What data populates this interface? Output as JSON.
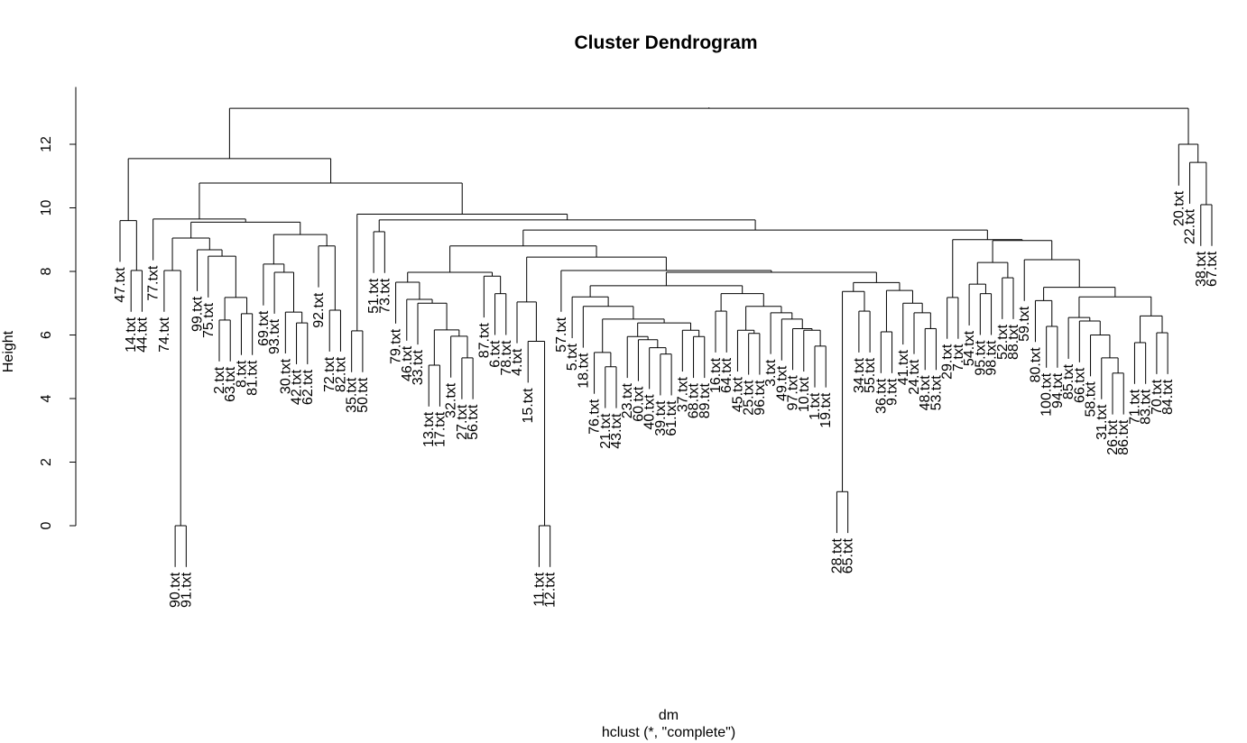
{
  "chart_data": {
    "type": "dendrogram",
    "title": "Cluster Dendrogram",
    "xlabel": "dm",
    "sublabel": "hclust (*, \"complete\")",
    "ylabel": "Height",
    "ylim": [
      0,
      13.5
    ],
    "yticks": [
      0,
      2,
      4,
      6,
      8,
      10,
      12
    ],
    "hang": 1.3,
    "leaf_suffix": ".txt",
    "tree": [
      13.13,
      [
        11.55,
        [
          9.6,
          "47",
          [
            8.03,
            "14",
            "44"
          ]
        ],
        [
          10.78,
          [
            9.65,
            "77",
            [
              9.55,
              [
                9.05,
                [
                  8.03,
                  "74",
                  [
                    0.0,
                    "90",
                    "91"
                  ]
                ],
                [
                  8.68,
                  "99",
                  [
                    8.48,
                    "75",
                    [
                      7.18,
                      [
                        6.47,
                        "2",
                        "63"
                      ],
                      [
                        6.67,
                        "8",
                        "81"
                      ]
                    ]
                  ]
                ]
              ],
              [
                9.16,
                [
                  8.23,
                  "69",
                  [
                    7.97,
                    "93",
                    [
                      6.72,
                      "30",
                      [
                        6.38,
                        "42",
                        "62"
                      ]
                    ]
                  ]
                ],
                [
                  8.8,
                  "92",
                  [
                    6.78,
                    "72",
                    "82"
                  ]
                ]
              ]
            ]
          ],
          [
            9.8,
            [
              6.13,
              "35",
              "50"
            ],
            [
              9.62,
              [
                9.25,
                "51",
                "73"
              ],
              [
                9.3,
                [
                  8.8,
                  [
                    7.97,
                    [
                      7.66,
                      "79",
                      [
                        7.12,
                        "46",
                        [
                          7.0,
                          "33",
                          [
                            6.16,
                            [
                              5.05,
                              "13",
                              "17"
                            ],
                            [
                              5.96,
                              "32",
                              [
                                5.28,
                                "27",
                                "56"
                              ]
                            ]
                          ]
                        ]
                      ]
                    ],
                    [
                      7.85,
                      "87",
                      [
                        7.3,
                        "6",
                        "78"
                      ]
                    ]
                  ],
                  [
                    8.45,
                    [
                      7.04,
                      "4",
                      [
                        5.8,
                        "15",
                        [
                          0.0,
                          "11",
                          "12"
                        ]
                      ]
                    ],
                    [
                      8.03,
                      "57",
                      [
                        7.97,
                        [
                          7.55,
                          [
                            7.2,
                            "5",
                            [
                              6.9,
                              "18",
                              [
                                6.5,
                                [
                                  5.45,
                                  "76",
                                  [
                                    5.0,
                                    "21",
                                    "43"
                                  ]
                                ],
                                [
                                  6.38,
                                  [
                                    5.95,
                                    "23",
                                    [
                                      5.85,
                                      "60",
                                      [
                                        5.6,
                                        "40",
                                        [
                                          5.4,
                                          "39",
                                          "61"
                                        ]
                                      ]
                                    ]
                                  ],
                                  [
                                    6.15,
                                    "37",
                                    [
                                      5.95,
                                      "68",
                                      "89"
                                    ]
                                  ]
                                ]
                              ]
                            ]
                          ],
                          [
                            7.3,
                            [
                              6.75,
                              "16",
                              "64"
                            ],
                            [
                              6.9,
                              [
                                6.15,
                                "45",
                                [
                                  6.05,
                                  "25",
                                  "96"
                                ]
                              ],
                              [
                                6.7,
                                "3",
                                [
                                  6.5,
                                  "49",
                                  [
                                    6.2,
                                    "97",
                                    [
                                      6.15,
                                      "10",
                                      [
                                        5.65,
                                        "1",
                                        "19"
                                      ]
                                    ]
                                  ]
                                ]
                              ]
                            ]
                          ]
                        ],
                        [
                          7.65,
                          [
                            7.37,
                            [
                              1.07,
                              "28",
                              "65"
                            ],
                            [
                              6.75,
                              "34",
                              "55"
                            ]
                          ],
                          [
                            7.4,
                            [
                              6.1,
                              "36",
                              "9"
                            ],
                            [
                              7.0,
                              "41",
                              [
                                6.7,
                                "24",
                                [
                                  6.2,
                                  "48",
                                  "53"
                                ]
                              ]
                            ]
                          ]
                        ]
                      ]
                    ]
                  ]
                ],
                [
                  9.0,
                  [
                    7.18,
                    "29",
                    "7"
                  ],
                  [
                    8.97,
                    [
                      8.28,
                      [
                        7.6,
                        "54",
                        [
                          7.3,
                          "95",
                          "98"
                        ]
                      ],
                      [
                        7.8,
                        "52",
                        "88"
                      ]
                    ],
                    [
                      8.37,
                      "59",
                      [
                        7.5,
                        [
                          7.08,
                          "80",
                          [
                            6.27,
                            "100",
                            "94"
                          ]
                        ],
                        [
                          7.2,
                          [
                            6.55,
                            "85",
                            [
                              6.44,
                              "66",
                              [
                                6.0,
                                "58",
                                [
                                  5.28,
                                  "31",
                                  [
                                    4.8,
                                    "26",
                                    "86"
                                  ]
                                ]
                              ]
                            ]
                          ],
                          [
                            6.6,
                            [
                              5.76,
                              "71",
                              "83"
                            ],
                            [
                              6.07,
                              "70",
                              "84"
                            ]
                          ]
                        ]
                      ]
                    ]
                  ]
                ]
              ]
            ]
          ]
        ]
      ],
      [
        12.0,
        "20",
        [
          11.43,
          "22",
          [
            10.1,
            "38",
            "67"
          ]
        ]
      ]
    ]
  }
}
